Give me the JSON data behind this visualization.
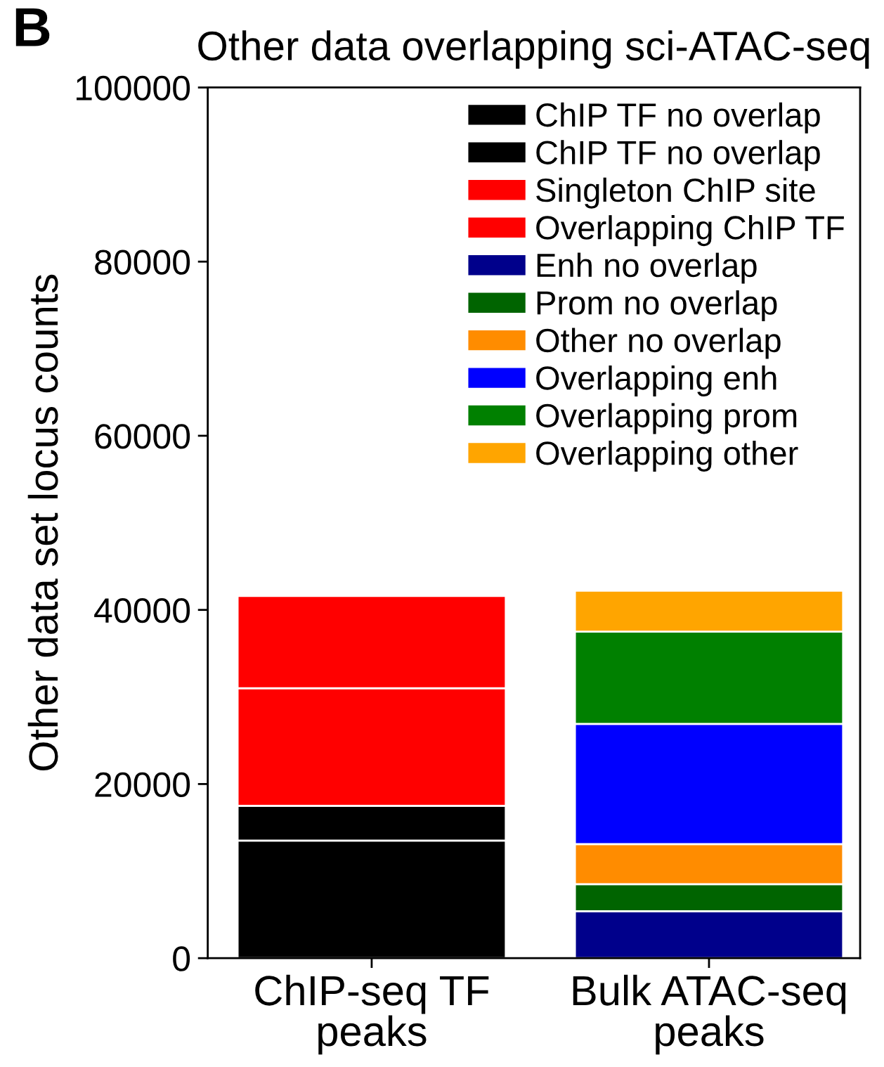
{
  "chart_data": {
    "type": "bar",
    "title": "Other data overlapping sci-ATAC-seq",
    "ylabel": "Other data set locus counts",
    "annotations": [
      "B"
    ],
    "categories": [
      "ChIP-seq TF\npeaks",
      "Bulk ATAC-seq\npeaks"
    ],
    "stacked": true,
    "ylim": [
      0,
      100000
    ],
    "yticks": [
      0,
      20000,
      40000,
      60000,
      80000,
      100000
    ],
    "legend": "top right",
    "series": [
      {
        "name": "ChIP TF no overlap",
        "color": "#000000",
        "values": [
          13500,
          null
        ]
      },
      {
        "name": "ChIP TF no overlap",
        "color": "#000000",
        "values": [
          4000,
          null
        ]
      },
      {
        "name": "Singleton ChIP site",
        "color": "#ff0000",
        "values": [
          13500,
          null
        ]
      },
      {
        "name": "Overlapping ChIP TF",
        "color": "#ff0000",
        "values": [
          10600,
          null
        ]
      },
      {
        "name": "Enh no overlap",
        "color": "#00008b",
        "values": [
          null,
          5400
        ]
      },
      {
        "name": "Prom no overlap",
        "color": "#006400",
        "values": [
          null,
          3100
        ]
      },
      {
        "name": "Other no overlap",
        "color": "#ff8c00",
        "values": [
          null,
          4600
        ]
      },
      {
        "name": "Overlapping enh",
        "color": "#0000ff",
        "values": [
          null,
          13800
        ]
      },
      {
        "name": "Overlapping prom",
        "color": "#008000",
        "values": [
          null,
          10600
        ]
      },
      {
        "name": "Overlapping other",
        "color": "#ffa500",
        "values": [
          null,
          4700
        ]
      }
    ]
  }
}
